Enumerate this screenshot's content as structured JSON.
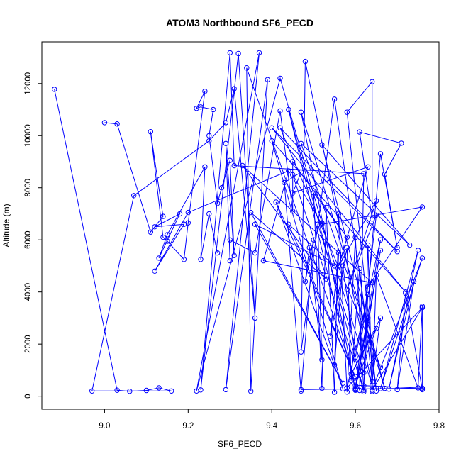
{
  "chart_data": {
    "type": "line",
    "title": "ATOM3 Northbound SF6_PECD",
    "xlabel": "SF6_PECD",
    "ylabel": "Altitude (m)",
    "xlim": [
      8.85,
      9.8
    ],
    "ylim": [
      -500,
      13600
    ],
    "xticks": [
      "9.0",
      "9.2",
      "9.4",
      "9.6",
      "9.8"
    ],
    "xtick_values": [
      9.0,
      9.2,
      9.4,
      9.6,
      9.8
    ],
    "yticks": [
      "0",
      "2000",
      "4000",
      "6000",
      "8000",
      "10000",
      "12000"
    ],
    "ytick_values": [
      0,
      2000,
      4000,
      6000,
      8000,
      10000,
      12000
    ],
    "grid": false,
    "line_style": "lines with open circle markers",
    "color": "#0000ff",
    "series": [
      {
        "values": [
          [
            8.88,
            11780
          ],
          [
            9.03,
            230
          ],
          [
            9.06,
            190
          ],
          [
            9.1,
            220
          ],
          [
            9.13,
            320
          ],
          [
            9.16,
            200
          ],
          [
            8.97,
            200
          ],
          [
            9.07,
            7700
          ],
          [
            9.25,
            9800
          ],
          [
            9.29,
            10500
          ],
          [
            9.31,
            11800
          ],
          [
            9.36,
            3000
          ],
          [
            9.32,
            13150
          ],
          [
            9.23,
            240
          ],
          [
            9.3,
            13180
          ],
          [
            9.31,
            8850
          ],
          [
            9.62,
            8540
          ],
          [
            9.61,
            220
          ],
          [
            9.34,
            12600
          ],
          [
            9.35,
            190
          ],
          [
            9.39,
            12150
          ],
          [
            9.29,
            250
          ],
          [
            9.37,
            13180
          ],
          [
            9.22,
            200
          ],
          [
            9.42,
            12200
          ],
          [
            9.52,
            6650
          ],
          [
            9.64,
            400
          ],
          [
            9.48,
            12850
          ],
          [
            9.47,
            1700
          ],
          [
            9.55,
            11400
          ],
          [
            9.65,
            200
          ],
          [
            9.58,
            10900
          ],
          [
            9.64,
            12070
          ],
          [
            9.64,
            6800
          ],
          [
            9.61,
            10140
          ],
          [
            9.71,
            9710
          ],
          [
            9.67,
            8520
          ],
          [
            9.7,
            5700
          ],
          [
            9.66,
            9300
          ],
          [
            9.63,
            4200
          ],
          [
            9.76,
            7260
          ],
          [
            9.52,
            6600
          ],
          [
            9.45,
            8500
          ],
          [
            9.62,
            230
          ],
          [
            9.44,
            11000
          ],
          [
            9.6,
            250
          ],
          [
            9.47,
            10900
          ],
          [
            9.67,
            300
          ],
          [
            9.52,
            9650
          ],
          [
            9.73,
            5800
          ],
          [
            9.47,
            9700
          ],
          [
            9.66,
            1120
          ],
          [
            9.42,
            10300
          ],
          [
            9.7,
            5550
          ],
          [
            9.4,
            10300
          ],
          [
            9.72,
            4000
          ],
          [
            9.4,
            9800
          ],
          [
            9.57,
            280
          ],
          [
            9.41,
            7450
          ],
          [
            9.6,
            750
          ],
          [
            9.44,
            6600
          ],
          [
            9.55,
            5000
          ],
          [
            9.36,
            6600
          ],
          [
            9.57,
            500
          ],
          [
            9.35,
            7050
          ],
          [
            9.53,
            4500
          ],
          [
            9.33,
            8850
          ],
          [
            9.64,
            4350
          ],
          [
            9.38,
            5200
          ],
          [
            9.44,
            8650
          ],
          [
            9.2,
            7050
          ],
          [
            9.12,
            4800
          ],
          [
            9.19,
            6600
          ],
          [
            9.12,
            6500
          ],
          [
            9.18,
            7000
          ],
          [
            9.13,
            5300
          ],
          [
            9.15,
            6200
          ],
          [
            9.24,
            8800
          ],
          [
            9.23,
            5250
          ],
          [
            9.25,
            7000
          ],
          [
            9.27,
            5500
          ]
        ]
      },
      {
        "values": [
          [
            9.0,
            10500
          ],
          [
            9.03,
            10450
          ],
          [
            9.11,
            6300
          ],
          [
            9.14,
            6900
          ],
          [
            9.11,
            10150
          ],
          [
            9.14,
            6100
          ],
          [
            9.15,
            5950
          ],
          [
            9.19,
            5250
          ],
          [
            9.2,
            6650
          ],
          [
            9.24,
            11700
          ],
          [
            9.22,
            11050
          ],
          [
            9.23,
            11100
          ],
          [
            9.26,
            11000
          ],
          [
            9.25,
            10000
          ],
          [
            9.27,
            7400
          ],
          [
            9.28,
            8000
          ],
          [
            9.3,
            9050
          ],
          [
            9.31,
            5400
          ],
          [
            9.29,
            9700
          ],
          [
            9.3,
            5200
          ],
          [
            9.3,
            6000
          ],
          [
            9.36,
            5500
          ],
          [
            9.42,
            10950
          ],
          [
            9.45,
            7100
          ],
          [
            9.45,
            9000
          ],
          [
            9.58,
            6100
          ],
          [
            9.5,
            7800
          ],
          [
            9.52,
            300
          ],
          [
            9.53,
            7250
          ],
          [
            9.55,
            150
          ],
          [
            9.56,
            7000
          ],
          [
            9.58,
            160
          ],
          [
            9.6,
            6100
          ],
          [
            9.62,
            170
          ],
          [
            9.63,
            5800
          ],
          [
            9.64,
            180
          ],
          [
            9.65,
            4650
          ],
          [
            9.75,
            320
          ],
          [
            9.76,
            3450
          ],
          [
            9.76,
            250
          ],
          [
            9.72,
            3950
          ],
          [
            9.7,
            250
          ],
          [
            9.74,
            4400
          ],
          [
            9.68,
            270
          ],
          [
            9.75,
            5600
          ],
          [
            9.66,
            290
          ],
          [
            9.76,
            5300
          ],
          [
            9.64,
            230
          ],
          [
            9.76,
            3400
          ],
          [
            9.58,
            320
          ],
          [
            9.66,
            6000
          ],
          [
            9.6,
            300
          ],
          [
            9.63,
            3000
          ],
          [
            9.62,
            400
          ]
        ]
      },
      {
        "values": [
          [
            9.47,
            250
          ],
          [
            9.76,
            310
          ],
          [
            9.6,
            420
          ],
          [
            9.65,
            2600
          ],
          [
            9.59,
            850
          ],
          [
            9.66,
            3000
          ],
          [
            9.64,
            550
          ],
          [
            9.61,
            4900
          ],
          [
            9.59,
            600
          ],
          [
            9.58,
            5700
          ],
          [
            9.54,
            2300
          ],
          [
            9.56,
            5500
          ],
          [
            9.55,
            1200
          ],
          [
            9.57,
            5000
          ],
          [
            9.6,
            1500
          ],
          [
            9.63,
            3900
          ],
          [
            9.62,
            900
          ],
          [
            9.51,
            6600
          ],
          [
            9.52,
            1400
          ],
          [
            9.49,
            5700
          ],
          [
            9.48,
            4400
          ],
          [
            9.5,
            6000
          ],
          [
            9.47,
            200
          ],
          [
            9.43,
            8200
          ],
          [
            9.47,
            8600
          ],
          [
            9.45,
            7800
          ],
          [
            9.63,
            8800
          ],
          [
            9.56,
            5000
          ],
          [
            9.65,
            7500
          ],
          [
            9.58,
            4100
          ],
          [
            9.65,
            6950
          ],
          [
            9.6,
            230
          ],
          [
            9.66,
            5600
          ],
          [
            9.61,
            800
          ]
        ]
      }
    ]
  }
}
